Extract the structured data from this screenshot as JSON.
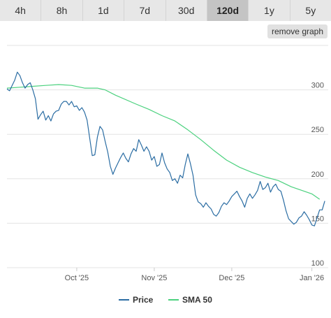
{
  "range_tabs": [
    {
      "label": "4h"
    },
    {
      "label": "8h"
    },
    {
      "label": "1d"
    },
    {
      "label": "7d"
    },
    {
      "label": "30d"
    },
    {
      "label": "120d",
      "active": true
    },
    {
      "label": "1y"
    },
    {
      "label": "5y"
    }
  ],
  "remove_graph_label": "remove graph",
  "colors": {
    "price": "#2b6da3",
    "sma": "#4bd17e",
    "grid": "#e3e3e3"
  },
  "chart_data": {
    "type": "line",
    "x_ticks": [
      {
        "label": "Oct '25",
        "day": 27
      },
      {
        "label": "Nov '25",
        "day": 57
      },
      {
        "label": "Dec '25",
        "day": 87
      },
      {
        "label": "Jan '26",
        "day": 118
      }
    ],
    "ylim": [
      100,
      350
    ],
    "y_ticks": [
      100,
      150,
      200,
      250,
      300
    ],
    "xlim": [
      0,
      121
    ],
    "grid": true,
    "legend": "bottom",
    "series": [
      {
        "name": "Price",
        "points": [
          [
            0,
            301
          ],
          [
            1,
            299
          ],
          [
            2,
            305
          ],
          [
            3,
            311
          ],
          [
            4,
            320
          ],
          [
            5,
            316
          ],
          [
            6,
            308
          ],
          [
            7,
            302
          ],
          [
            8,
            306
          ],
          [
            9,
            308
          ],
          [
            10,
            300
          ],
          [
            11,
            290
          ],
          [
            12,
            267
          ],
          [
            13,
            272
          ],
          [
            14,
            276
          ],
          [
            15,
            266
          ],
          [
            16,
            271
          ],
          [
            17,
            265
          ],
          [
            18,
            273
          ],
          [
            19,
            276
          ],
          [
            20,
            277
          ],
          [
            21,
            284
          ],
          [
            22,
            287
          ],
          [
            23,
            287
          ],
          [
            24,
            283
          ],
          [
            25,
            287
          ],
          [
            26,
            281
          ],
          [
            27,
            282
          ],
          [
            28,
            277
          ],
          [
            29,
            280
          ],
          [
            30,
            275
          ],
          [
            31,
            266
          ],
          [
            32,
            246
          ],
          [
            33,
            226
          ],
          [
            34,
            227
          ],
          [
            35,
            247
          ],
          [
            36,
            259
          ],
          [
            37,
            255
          ],
          [
            38,
            242
          ],
          [
            39,
            230
          ],
          [
            40,
            214
          ],
          [
            41,
            205
          ],
          [
            42,
            212
          ],
          [
            43,
            218
          ],
          [
            44,
            224
          ],
          [
            45,
            229
          ],
          [
            46,
            223
          ],
          [
            47,
            219
          ],
          [
            48,
            228
          ],
          [
            49,
            234
          ],
          [
            50,
            231
          ],
          [
            51,
            244
          ],
          [
            52,
            238
          ],
          [
            53,
            231
          ],
          [
            54,
            236
          ],
          [
            55,
            231
          ],
          [
            56,
            221
          ],
          [
            57,
            225
          ],
          [
            58,
            214
          ],
          [
            59,
            216
          ],
          [
            60,
            229
          ],
          [
            61,
            218
          ],
          [
            62,
            211
          ],
          [
            63,
            207
          ],
          [
            64,
            198
          ],
          [
            65,
            200
          ],
          [
            66,
            195
          ],
          [
            67,
            204
          ],
          [
            68,
            201
          ],
          [
            69,
            216
          ],
          [
            70,
            228
          ],
          [
            71,
            217
          ],
          [
            72,
            204
          ],
          [
            73,
            182
          ],
          [
            74,
            174
          ],
          [
            75,
            172
          ],
          [
            76,
            168
          ],
          [
            77,
            173
          ],
          [
            78,
            169
          ],
          [
            79,
            166
          ],
          [
            80,
            160
          ],
          [
            81,
            158
          ],
          [
            82,
            162
          ],
          [
            83,
            169
          ],
          [
            84,
            173
          ],
          [
            85,
            171
          ],
          [
            86,
            175
          ],
          [
            87,
            180
          ],
          [
            88,
            183
          ],
          [
            89,
            186
          ],
          [
            90,
            180
          ],
          [
            91,
            175
          ],
          [
            92,
            168
          ],
          [
            93,
            178
          ],
          [
            94,
            183
          ],
          [
            95,
            178
          ],
          [
            96,
            182
          ],
          [
            97,
            187
          ],
          [
            98,
            197
          ],
          [
            99,
            188
          ],
          [
            100,
            190
          ],
          [
            101,
            195
          ],
          [
            102,
            185
          ],
          [
            103,
            191
          ],
          [
            104,
            194
          ],
          [
            105,
            188
          ],
          [
            106,
            186
          ],
          [
            107,
            176
          ],
          [
            108,
            164
          ],
          [
            109,
            155
          ],
          [
            110,
            152
          ],
          [
            111,
            149
          ],
          [
            112,
            151
          ],
          [
            113,
            156
          ],
          [
            114,
            158
          ],
          [
            115,
            163
          ],
          [
            116,
            159
          ],
          [
            117,
            154
          ],
          [
            118,
            148
          ],
          [
            119,
            147
          ],
          [
            120,
            156
          ],
          [
            121,
            165
          ],
          [
            122,
            165
          ],
          [
            123,
            175
          ]
        ]
      },
      {
        "name": "SMA 50",
        "points": [
          [
            0,
            302
          ],
          [
            5,
            303
          ],
          [
            10,
            304
          ],
          [
            15,
            305
          ],
          [
            20,
            306
          ],
          [
            25,
            305
          ],
          [
            30,
            302
          ],
          [
            35,
            302
          ],
          [
            38,
            300
          ],
          [
            42,
            294
          ],
          [
            50,
            284
          ],
          [
            55,
            278
          ],
          [
            60,
            271
          ],
          [
            65,
            265
          ],
          [
            70,
            255
          ],
          [
            75,
            244
          ],
          [
            80,
            232
          ],
          [
            85,
            221
          ],
          [
            90,
            213
          ],
          [
            95,
            207
          ],
          [
            100,
            202
          ],
          [
            105,
            198
          ],
          [
            110,
            191
          ],
          [
            115,
            186
          ],
          [
            118,
            183
          ],
          [
            121,
            177
          ]
        ]
      }
    ]
  }
}
